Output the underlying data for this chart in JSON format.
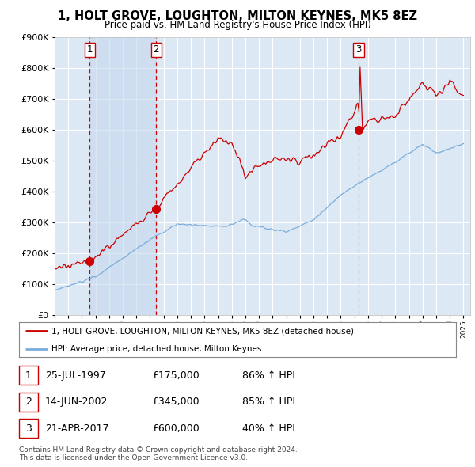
{
  "title": "1, HOLT GROVE, LOUGHTON, MILTON KEYNES, MK5 8EZ",
  "subtitle": "Price paid vs. HM Land Registry's House Price Index (HPI)",
  "plot_bg_color": "#dce9f5",
  "red_line_color": "#cc0000",
  "blue_line_color": "#7aaddb",
  "grid_color": "#ffffff",
  "sale_points": [
    {
      "date_num": 1997.57,
      "price": 175000,
      "label": "1"
    },
    {
      "date_num": 2002.45,
      "price": 345000,
      "label": "2"
    },
    {
      "date_num": 2017.31,
      "price": 600000,
      "label": "3"
    }
  ],
  "legend_red_label": "1, HOLT GROVE, LOUGHTON, MILTON KEYNES, MK5 8EZ (detached house)",
  "legend_blue_label": "HPI: Average price, detached house, Milton Keynes",
  "table_rows": [
    {
      "num": "1",
      "date": "25-JUL-1997",
      "price": "£175,000",
      "pct": "86% ↑ HPI"
    },
    {
      "num": "2",
      "date": "14-JUN-2002",
      "price": "£345,000",
      "pct": "85% ↑ HPI"
    },
    {
      "num": "3",
      "date": "21-APR-2017",
      "price": "£600,000",
      "pct": "40% ↑ HPI"
    }
  ],
  "footer": "Contains HM Land Registry data © Crown copyright and database right 2024.\nThis data is licensed under the Open Government Licence v3.0.",
  "ylim": [
    0,
    900000
  ],
  "xlim_start": 1995.0,
  "xlim_end": 2025.5
}
